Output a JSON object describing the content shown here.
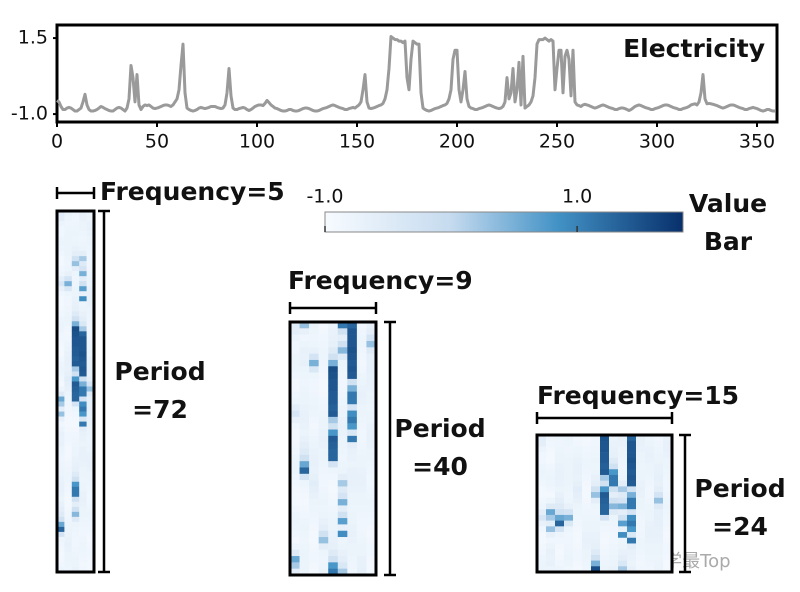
{
  "chart_data": {
    "type": "line",
    "series": [
      {
        "name": "Electricity",
        "color": "#9a9a9a",
        "values": [
          -0.55,
          -0.6,
          -0.75,
          -0.85,
          -0.85,
          -0.8,
          -0.78,
          -0.8,
          -0.85,
          -0.9,
          -0.9,
          -0.85,
          -0.8,
          -0.6,
          -0.35,
          -0.7,
          -0.85,
          -0.9,
          -0.9,
          -0.88,
          -0.85,
          -0.8,
          -0.75,
          -0.78,
          -0.82,
          -0.85,
          -0.88,
          -0.9,
          -0.9,
          -0.85,
          -0.8,
          -0.78,
          -0.8,
          -0.85,
          -0.9,
          -0.8,
          -0.5,
          0.6,
          0.2,
          -0.6,
          0.3,
          -0.7,
          -0.85,
          -0.75,
          -0.7,
          -0.72,
          -0.7,
          -0.75,
          -0.8,
          -0.82,
          -0.8,
          -0.78,
          -0.75,
          -0.72,
          -0.7,
          -0.7,
          -0.72,
          -0.75,
          -0.7,
          -0.6,
          -0.5,
          -0.2,
          0.6,
          1.3,
          -0.3,
          -0.8,
          -0.85,
          -0.88,
          -0.9,
          -0.88,
          -0.85,
          -0.8,
          -0.78,
          -0.8,
          -0.82,
          -0.8,
          -0.78,
          -0.75,
          -0.75,
          -0.75,
          -0.78,
          -0.8,
          -0.82,
          -0.8,
          -0.7,
          -0.3,
          0.5,
          -0.4,
          -0.8,
          -0.85,
          -0.85,
          -0.82,
          -0.8,
          -0.78,
          -0.8,
          -0.85,
          -0.88,
          -0.85,
          -0.8,
          -0.75,
          -0.72,
          -0.7,
          -0.7,
          -0.72,
          -0.65,
          -0.55,
          -0.62,
          -0.7,
          -0.75,
          -0.8,
          -0.82,
          -0.85,
          -0.88,
          -0.9,
          -0.9,
          -0.88,
          -0.85,
          -0.85,
          -0.88,
          -0.9,
          -0.9,
          -0.88,
          -0.85,
          -0.82,
          -0.8,
          -0.8,
          -0.82,
          -0.85,
          -0.88,
          -0.9,
          -0.9,
          -0.88,
          -0.85,
          -0.82,
          -0.8,
          -0.78,
          -0.75,
          -0.72,
          -0.7,
          -0.72,
          -0.75,
          -0.78,
          -0.8,
          -0.82,
          -0.85,
          -0.85,
          -0.82,
          -0.8,
          -0.78,
          -0.8,
          -0.75,
          -0.7,
          -0.6,
          -0.2,
          0.3,
          -0.6,
          -0.8,
          -0.82,
          -0.8,
          -0.78,
          -0.75,
          -0.72,
          -0.7,
          -0.65,
          -0.5,
          -0.2,
          0.5,
          1.55,
          1.5,
          1.45,
          1.45,
          1.4,
          1.4,
          1.35,
          1.4,
          0.2,
          -0.2,
          0.8,
          1.4,
          1.35,
          1.3,
          1.3,
          -0.3,
          -0.8,
          -0.85,
          -0.88,
          -0.9,
          -0.88,
          -0.85,
          -0.82,
          -0.8,
          -0.78,
          -0.75,
          -0.72,
          -0.7,
          -0.65,
          -0.5,
          -0.2,
          0.8,
          1.1,
          1.1,
          -0.2,
          -0.6,
          -0.2,
          0.4,
          -0.5,
          -0.75,
          -0.8,
          -0.82,
          -0.85,
          -0.85,
          -0.82,
          -0.8,
          -0.78,
          -0.75,
          -0.72,
          -0.7,
          -0.72,
          -0.75,
          -0.78,
          -0.8,
          -0.82,
          -0.8,
          -0.75,
          -0.6,
          0.2,
          -0.5,
          -0.3,
          0.5,
          -0.6,
          -0.2,
          0.7,
          -0.7,
          0.9,
          -0.8,
          -0.75,
          -0.7,
          -0.6,
          -0.4,
          0.2,
          1.3,
          1.45,
          1.45,
          1.45,
          1.5,
          1.45,
          1.4,
          1.45,
          1.4,
          -0.2,
          0.5,
          1.1,
          1.1,
          -0.3,
          0.9,
          1.1,
          0.8,
          -0.4,
          1.1,
          -0.6,
          -0.7,
          -0.72,
          -0.75,
          -0.7,
          -0.68,
          -0.7,
          -0.72,
          -0.75,
          -0.78,
          -0.8,
          -0.78,
          -0.75,
          -0.72,
          -0.7,
          -0.72,
          -0.75,
          -0.78,
          -0.8,
          -0.82,
          -0.85,
          -0.85,
          -0.82,
          -0.8,
          -0.8,
          -0.82,
          -0.85,
          -0.88,
          -0.85,
          -0.8,
          -0.75,
          -0.72,
          -0.7,
          -0.72,
          -0.75,
          -0.78,
          -0.8,
          -0.82,
          -0.85,
          -0.85,
          -0.82,
          -0.8,
          -0.78,
          -0.75,
          -0.72,
          -0.7,
          -0.7,
          -0.72,
          -0.75,
          -0.78,
          -0.8,
          -0.82,
          -0.85,
          -0.85,
          -0.82,
          -0.8,
          -0.78,
          -0.75,
          -0.7,
          -0.68,
          -0.66,
          -0.7,
          -0.6,
          -0.3,
          0.3,
          -0.5,
          -0.66,
          -0.65,
          -0.66,
          -0.68,
          -0.7,
          -0.72,
          -0.75,
          -0.78,
          -0.8,
          -0.78,
          -0.75,
          -0.72,
          -0.7,
          -0.7,
          -0.72,
          -0.75,
          -0.78,
          -0.8,
          -0.82,
          -0.85,
          -0.85,
          -0.82,
          -0.8,
          -0.78,
          -0.8,
          -0.82,
          -0.85,
          -0.88,
          -0.9,
          -0.88,
          -0.85,
          -0.85,
          -0.88,
          -0.9,
          -0.9
        ]
      }
    ],
    "x": [
      0,
      1,
      2,
      3,
      4,
      5,
      6,
      7,
      8,
      9,
      10,
      11,
      12,
      13,
      14,
      15,
      16,
      17,
      18,
      19,
      20,
      21,
      22,
      23,
      24,
      25,
      26,
      27,
      28,
      29,
      30,
      31,
      32,
      33,
      34,
      35,
      36,
      37,
      38,
      39,
      40,
      41,
      42,
      43,
      44,
      45,
      46,
      47,
      48,
      49,
      50,
      51,
      52,
      53,
      54,
      55,
      56,
      57,
      58,
      59,
      60,
      61,
      62,
      63,
      64,
      65,
      66,
      67,
      68,
      69,
      70,
      71,
      72,
      73,
      74,
      75,
      76,
      77,
      78,
      79,
      80,
      81,
      82,
      83,
      84,
      85,
      86,
      87,
      88,
      89,
      90,
      91,
      92,
      93,
      94,
      95,
      96,
      97,
      98,
      99,
      100,
      101,
      102,
      103,
      104,
      105,
      106,
      107,
      108,
      109,
      110,
      111,
      112,
      113,
      114,
      115,
      116,
      117,
      118,
      119,
      120,
      121,
      122,
      123,
      124,
      125,
      126,
      127,
      128,
      129,
      130,
      131,
      132,
      133,
      134,
      135,
      136,
      137,
      138,
      139,
      140,
      141,
      142,
      143,
      144,
      145,
      146,
      147,
      148,
      149,
      150,
      151,
      152,
      153,
      154,
      155,
      156,
      157,
      158,
      159,
      160,
      161,
      162,
      163,
      164,
      165,
      166,
      167,
      168,
      169,
      170,
      171,
      172,
      173,
      174,
      175,
      176,
      177,
      178,
      179,
      180,
      181,
      182,
      183,
      184,
      185,
      186,
      187,
      188,
      189,
      190,
      191,
      192,
      193,
      194,
      195,
      196,
      197,
      198,
      199,
      200,
      201,
      202,
      203,
      204,
      205,
      206,
      207,
      208,
      209,
      210,
      211,
      212,
      213,
      214,
      215,
      216,
      217,
      218,
      219,
      220,
      221,
      222,
      223,
      224,
      225,
      226,
      227,
      228,
      229,
      230,
      231,
      232,
      233,
      234,
      235,
      236,
      237,
      238,
      239,
      240,
      241,
      242,
      243,
      244,
      245,
      246,
      247,
      248,
      249,
      250,
      251,
      252,
      253,
      254,
      255,
      256,
      257,
      258,
      259,
      260,
      261,
      262,
      263,
      264,
      265,
      266,
      267,
      268,
      269,
      270,
      271,
      272,
      273,
      274,
      275,
      276,
      277,
      278,
      279,
      280,
      281,
      282,
      283,
      284,
      285,
      286,
      287,
      288,
      289,
      290,
      291,
      292,
      293,
      294,
      295,
      296,
      297,
      298,
      299,
      300,
      301,
      302,
      303,
      304,
      305,
      306,
      307,
      308,
      309,
      310,
      311,
      312,
      313,
      314,
      315,
      316,
      317,
      318,
      319,
      320,
      321,
      322,
      323,
      324,
      325,
      326,
      327,
      328,
      329,
      330,
      331,
      332,
      333,
      334,
      335,
      336,
      337,
      338,
      339,
      340,
      341,
      342,
      343,
      344,
      345,
      346,
      347,
      348,
      349,
      350,
      351,
      352,
      353,
      354,
      355,
      356,
      357,
      358,
      359
    ],
    "xlim": [
      0,
      360
    ],
    "xticks": [
      0,
      50,
      100,
      150,
      200,
      250,
      300,
      350
    ],
    "ylim": [
      -1.26,
      1.93
    ],
    "yticks": [
      {
        "value": -1,
        "label": "-1.0"
      },
      1.5
    ],
    "colorbar": {
      "title": [
        "Value",
        "Bar"
      ],
      "lim": [
        -1,
        1.84
      ],
      "ticks": [
        {
          "value": -1,
          "label": "-1.0"
        },
        {
          "value": 1,
          "label": "1.0"
        }
      ]
    },
    "heatmaps": [
      {
        "frequency_label": "Frequency=5",
        "period_label": [
          "Period",
          "=72"
        ],
        "columns": 5,
        "rows": 72
      },
      {
        "frequency_label": "Frequency=9",
        "period_label": [
          "Period",
          "=40"
        ],
        "columns": 9,
        "rows": 40
      },
      {
        "frequency_label": "Frequency=15",
        "period_label": [
          "Period",
          "=24"
        ],
        "columns": 15,
        "rows": 24
      }
    ],
    "watermark": "公众号 · 科学最Top"
  }
}
